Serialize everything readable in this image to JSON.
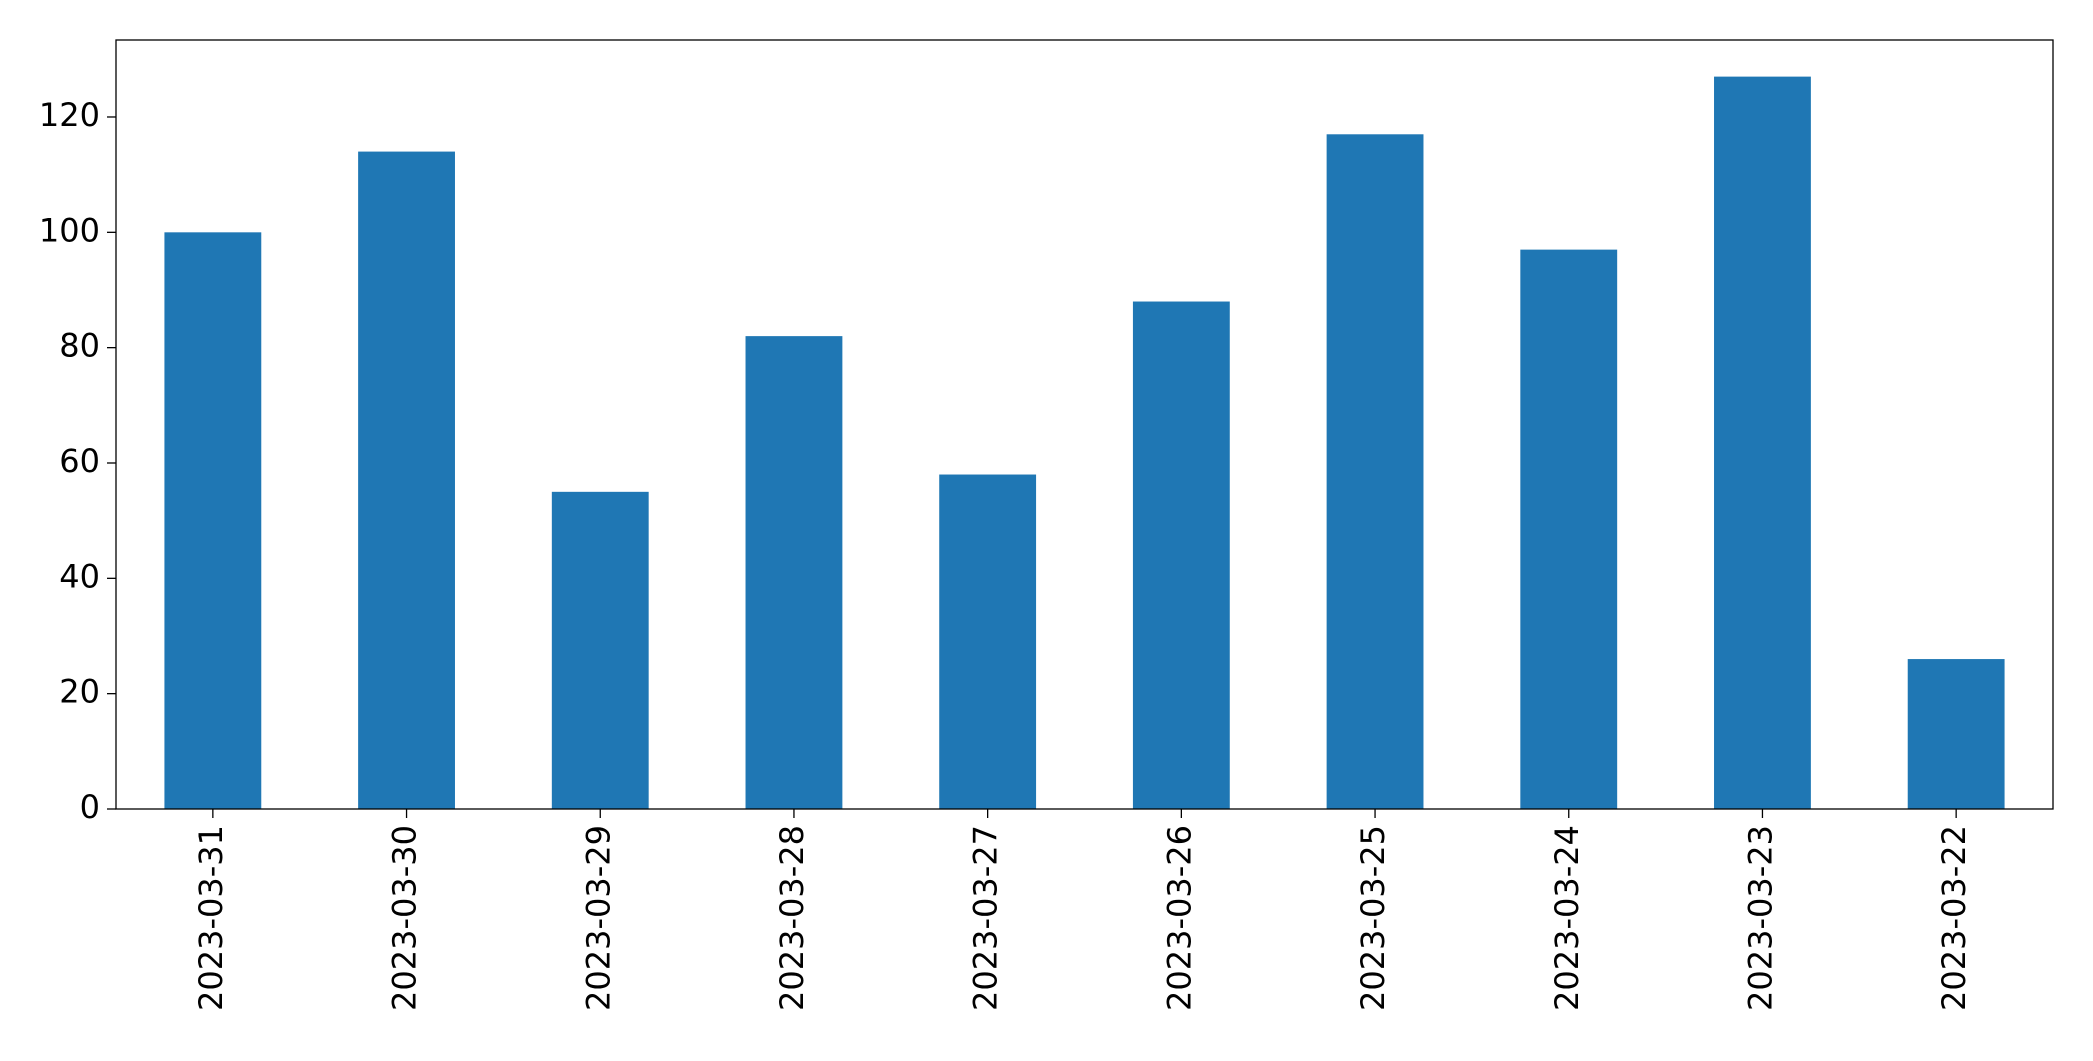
{
  "chart_data": {
    "type": "bar",
    "categories": [
      "2023-03-31",
      "2023-03-30",
      "2023-03-29",
      "2023-03-28",
      "2023-03-27",
      "2023-03-26",
      "2023-03-25",
      "2023-03-24",
      "2023-03-23",
      "2023-03-22"
    ],
    "values": [
      100,
      114,
      55,
      82,
      58,
      88,
      117,
      97,
      127,
      26
    ],
    "color": "#1f77b4",
    "ylim": [
      0,
      133.35
    ],
    "yticks": [
      0,
      20,
      40,
      60,
      80,
      100,
      120
    ],
    "grid": false
  }
}
